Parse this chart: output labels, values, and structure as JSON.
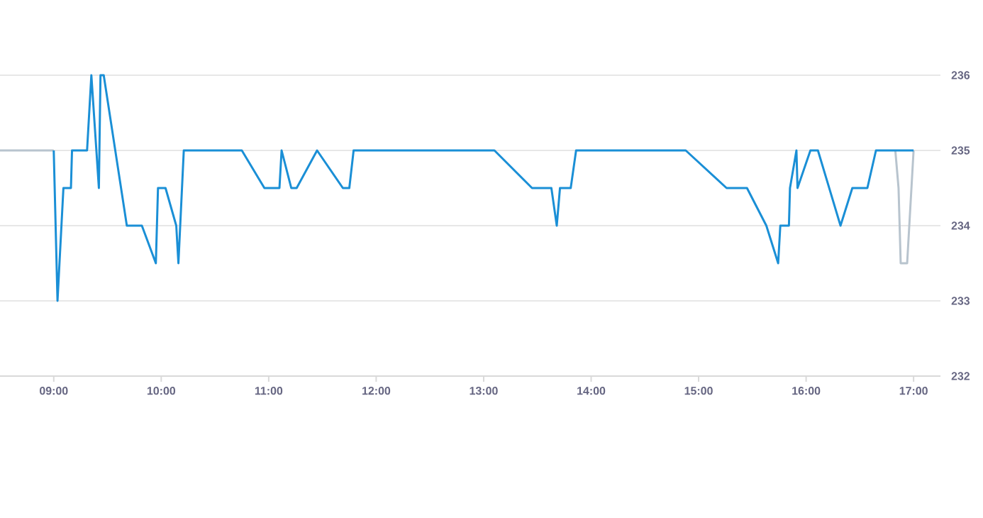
{
  "chart_data": {
    "type": "line",
    "xlim": [
      8.5,
      17.25
    ],
    "ylim": [
      232,
      236
    ],
    "xticks": [
      {
        "value": 9,
        "label": "09:00"
      },
      {
        "value": 10,
        "label": "10:00"
      },
      {
        "value": 11,
        "label": "11:00"
      },
      {
        "value": 12,
        "label": "12:00"
      },
      {
        "value": 13,
        "label": "13:00"
      },
      {
        "value": 14,
        "label": "14:00"
      },
      {
        "value": 15,
        "label": "15:00"
      },
      {
        "value": 16,
        "label": "16:00"
      },
      {
        "value": 17,
        "label": "17:00"
      }
    ],
    "yticks": [
      232,
      233,
      234,
      235,
      236
    ],
    "grid": "y",
    "marker": "none",
    "line_style": "solid",
    "series": [
      {
        "color": "#b8c4ce",
        "x": [
          8.5,
          9.0,
          13.0,
          16.83,
          16.86,
          16.88,
          16.94,
          17.0
        ],
        "values": [
          235,
          235,
          null,
          235,
          234.5,
          233.5,
          233.5,
          235
        ]
      },
      {
        "color": "#1a8fd6",
        "x": [
          9.0,
          9.035,
          9.09,
          9.16,
          9.17,
          9.31,
          9.35,
          9.42,
          9.435,
          9.465,
          9.68,
          9.82,
          9.95,
          9.97,
          10.04,
          10.14,
          10.16,
          10.21,
          10.75,
          10.96,
          11.1,
          11.12,
          11.21,
          11.26,
          11.45,
          11.69,
          11.75,
          11.79,
          13.1,
          13.45,
          13.63,
          13.68,
          13.71,
          13.81,
          13.86,
          14.88,
          15.26,
          15.45,
          15.63,
          15.74,
          15.76,
          15.84,
          15.85,
          15.91,
          15.92,
          16.04,
          16.11,
          16.32,
          16.43,
          16.57,
          16.65,
          17.0
        ],
        "values": [
          235,
          233,
          234.5,
          234.5,
          235,
          235,
          236,
          234.5,
          236,
          236,
          234,
          234,
          233.5,
          234.5,
          234.5,
          234,
          233.5,
          235,
          235,
          234.5,
          234.5,
          235,
          234.5,
          234.5,
          235,
          234.5,
          234.5,
          235,
          235,
          234.5,
          234.5,
          234,
          234.5,
          234.5,
          235,
          235,
          234.5,
          234.5,
          234,
          233.5,
          234,
          234,
          234.5,
          235,
          234.5,
          235,
          235,
          234,
          234.5,
          234.5,
          235,
          235
        ]
      }
    ]
  }
}
